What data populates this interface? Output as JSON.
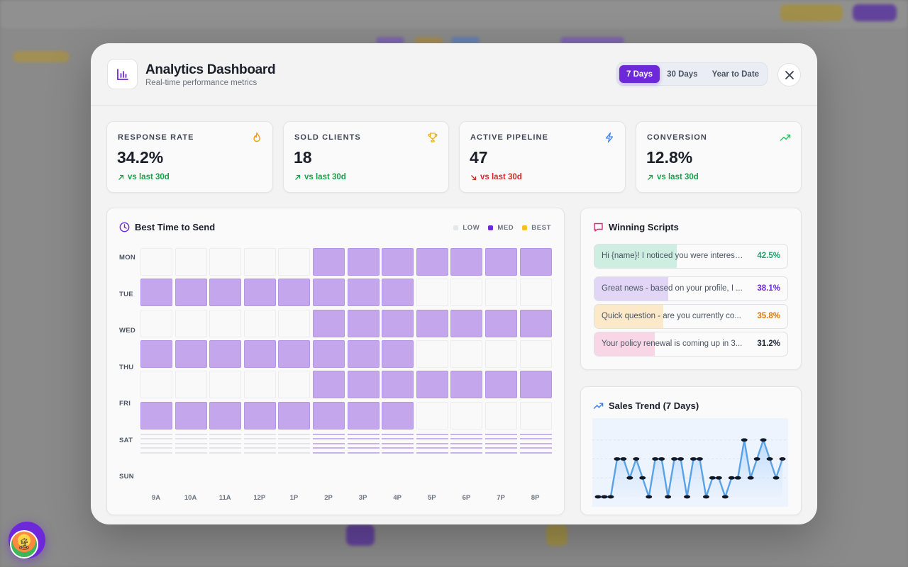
{
  "header": {
    "title": "Analytics Dashboard",
    "subtitle": "Real-time performance metrics",
    "icon": "bar-chart-icon"
  },
  "date_range": {
    "options": [
      "7 Days",
      "30 Days",
      "Year to Date"
    ],
    "selected": "7 Days"
  },
  "kpis": [
    {
      "label": "RESPONSE RATE",
      "value": "34.2%",
      "delta": "vs last 30d",
      "direction": "up",
      "icon": "flame-icon",
      "icon_color": "#f59e0b"
    },
    {
      "label": "SOLD CLIENTS",
      "value": "18",
      "delta": "vs last 30d",
      "direction": "up",
      "icon": "trophy-icon",
      "icon_color": "#eab308"
    },
    {
      "label": "ACTIVE PIPELINE",
      "value": "47",
      "delta": "vs last 30d",
      "direction": "down",
      "icon": "lightning-icon",
      "icon_color": "#3b82f6"
    },
    {
      "label": "CONVERSION",
      "value": "12.8%",
      "delta": "vs last 30d",
      "direction": "up",
      "icon": "trending-up-icon",
      "icon_color": "#22c55e"
    }
  ],
  "heatmap": {
    "title": "Best Time to Send",
    "legend": [
      "LOW",
      "MED",
      "BEST"
    ],
    "legend_colors": [
      "#e5e7eb",
      "#6d28d9",
      "#fbbf24"
    ],
    "days": [
      "MON",
      "TUE",
      "WED",
      "THU",
      "FRI",
      "SAT",
      "SUN"
    ],
    "hours": [
      "9A",
      "10A",
      "11A",
      "12P",
      "1P",
      "2P",
      "3P",
      "4P",
      "5P",
      "6P",
      "7P",
      "8P"
    ],
    "levels": [
      [
        0,
        0,
        0,
        0,
        0,
        1,
        1,
        1,
        1,
        1,
        1,
        1
      ],
      [
        1,
        1,
        1,
        1,
        1,
        1,
        1,
        1,
        0,
        0,
        0,
        0
      ],
      [
        0,
        0,
        0,
        0,
        0,
        1,
        1,
        1,
        1,
        1,
        1,
        1
      ],
      [
        1,
        1,
        1,
        1,
        1,
        1,
        1,
        1,
        0,
        0,
        0,
        0
      ],
      [
        0,
        0,
        0,
        0,
        0,
        1,
        1,
        1,
        1,
        1,
        1,
        1
      ],
      [
        1,
        1,
        1,
        1,
        1,
        1,
        1,
        1,
        0,
        0,
        0,
        0
      ],
      [
        0,
        0,
        0,
        0,
        0,
        1,
        1,
        1,
        1,
        1,
        1,
        1
      ]
    ]
  },
  "scripts": {
    "title": "Winning Scripts",
    "items": [
      {
        "text": "Hi {name}! I noticed you were intereste...",
        "pct": "42.5%",
        "rate": 0.425,
        "color": "#22a06b",
        "fill": "#cdeee0"
      },
      {
        "text": "Great news - based on your profile, I ...",
        "pct": "38.1%",
        "rate": 0.381,
        "color": "#6d28d9",
        "fill": "#e2d6f7"
      },
      {
        "text": "Quick question - are you currently co...",
        "pct": "35.8%",
        "rate": 0.358,
        "color": "#d97706",
        "fill": "#fbe9c9"
      },
      {
        "text": "Your policy renewal is coming up in 3...",
        "pct": "31.2%",
        "rate": 0.312,
        "color": "#1f2937",
        "fill": "#f8d6e6"
      }
    ]
  },
  "trend": {
    "title": "Sales Trend (7 Days)"
  },
  "chart_data": {
    "type": "line",
    "title": "Sales Trend (7 Days)",
    "xlabel": "",
    "ylabel": "",
    "ylim": [
      0,
      4
    ],
    "series": [
      {
        "values": [
          0,
          0,
          0,
          2,
          2,
          1,
          2,
          1,
          0,
          2,
          2,
          0,
          2,
          2,
          0,
          2,
          2,
          0,
          1,
          1,
          0,
          1,
          1,
          3,
          1,
          2,
          3,
          2,
          1,
          2
        ]
      }
    ]
  }
}
